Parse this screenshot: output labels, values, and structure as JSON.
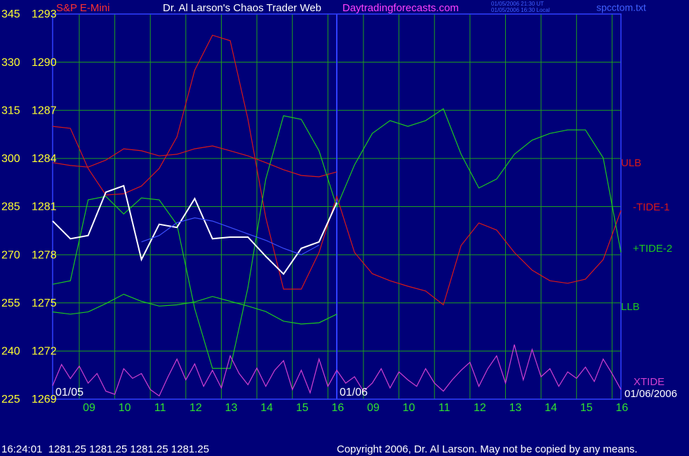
{
  "chart_data": {
    "type": "line",
    "instrument": "S&P E-Mini",
    "title": "Dr. Al Larson's Chaos Trader Web",
    "website": "Daytradingforecasts.com",
    "timestamps": [
      "01/05/2006 21:30 UT",
      "01/05/2006 16:30 Local"
    ],
    "file": "spcctom.txt",
    "status": "16:24:01  1281.25 1281.25 1281.25 1281.25",
    "copyright": "Copyright 2006, Dr. Al Larson. May not be copied by any means.",
    "date_labels": [
      {
        "value": 0,
        "label": "01/05"
      },
      {
        "value": 8,
        "label": "01/06"
      }
    ],
    "end_date": "01/06/2006",
    "xlim": [
      0,
      16
    ],
    "xticks": [
      {
        "value": 0.75,
        "label": "09"
      },
      {
        "value": 1.75,
        "label": "10"
      },
      {
        "value": 2.75,
        "label": "11"
      },
      {
        "value": 3.75,
        "label": "12"
      },
      {
        "value": 4.75,
        "label": "13"
      },
      {
        "value": 5.75,
        "label": "14"
      },
      {
        "value": 6.75,
        "label": "15"
      },
      {
        "value": 7.75,
        "label": "16"
      },
      {
        "value": 8.75,
        "label": "09"
      },
      {
        "value": 9.75,
        "label": "10"
      },
      {
        "value": 10.75,
        "label": "11"
      },
      {
        "value": 11.75,
        "label": "12"
      },
      {
        "value": 12.75,
        "label": "13"
      },
      {
        "value": 13.75,
        "label": "14"
      },
      {
        "value": 14.75,
        "label": "15"
      },
      {
        "value": 15.75,
        "label": "16"
      }
    ],
    "ylim": [
      225,
      345
    ],
    "yticks": [
      345,
      330,
      315,
      300,
      285,
      270,
      255,
      240,
      225
    ],
    "y2lim": [
      1269,
      1293
    ],
    "y2ticks": [
      1293,
      1290,
      1287,
      1284,
      1281,
      1278,
      1275,
      1272,
      1269
    ],
    "grid": true,
    "x": [
      0,
      0.5,
      1,
      1.5,
      2,
      2.5,
      3,
      3.5,
      4,
      4.5,
      5,
      5.5,
      6,
      6.5,
      7,
      7.5,
      8,
      8.5,
      9,
      9.5,
      10,
      10.5,
      11,
      11.5,
      12,
      12.5,
      13,
      13.5,
      14,
      14.5,
      15,
      15.5,
      16
    ],
    "series": [
      {
        "name": "ULB",
        "color": "#d81818",
        "values": [
          298.7,
          297.8,
          297.3,
          299.5,
          303.0,
          302.4,
          300.8,
          301.3,
          303.0,
          303.9,
          302.4,
          300.8,
          298.7,
          296.5,
          294.7,
          294.3,
          295.8,
          null,
          null,
          null,
          null,
          null,
          null,
          null,
          null,
          null,
          null,
          null,
          null,
          null,
          null,
          null,
          null
        ]
      },
      {
        "name": "-TIDE-1",
        "color": "#d81818",
        "values": [
          310.0,
          309.4,
          296.9,
          288.6,
          289.0,
          291.4,
          296.9,
          306.7,
          327.5,
          338.4,
          336.7,
          312.2,
          281.6,
          259.3,
          259.3,
          270.7,
          288.2,
          270.7,
          264.1,
          261.9,
          260.2,
          258.7,
          254.4,
          272.9,
          279.9,
          277.7,
          270.7,
          265.2,
          261.9,
          261.1,
          262.4,
          268.5,
          283.8
        ]
      },
      {
        "name": "+TIDE-2",
        "color": "#1ec81e",
        "values": [
          260.8,
          261.9,
          287.1,
          288.2,
          282.7,
          287.7,
          287.1,
          279.4,
          253.2,
          234.6,
          234.6,
          259.8,
          293.6,
          313.3,
          312.2,
          302.4,
          284.9,
          298.0,
          307.8,
          311.8,
          310.0,
          311.8,
          315.5,
          301.3,
          290.8,
          293.6,
          301.3,
          305.7,
          307.8,
          308.9,
          308.9,
          300.2,
          270.7
        ]
      },
      {
        "name": "LLB",
        "color": "#1ec81e",
        "values": [
          252.2,
          251.5,
          252.2,
          254.8,
          257.7,
          255.5,
          254.0,
          254.4,
          255.3,
          257.0,
          255.5,
          254.0,
          252.3,
          249.3,
          248.4,
          248.8,
          251.5,
          null,
          null,
          null,
          null,
          null,
          null,
          null,
          null,
          null,
          null,
          null,
          null,
          null,
          null,
          null,
          null
        ]
      },
      {
        "name": "XTIDE",
        "color": "#d040d0",
        "x": [
          0,
          0.25,
          0.5,
          0.75,
          1,
          1.25,
          1.5,
          1.75,
          2,
          2.25,
          2.5,
          2.75,
          3,
          3.25,
          3.5,
          3.75,
          4,
          4.25,
          4.5,
          4.75,
          5,
          5.25,
          5.5,
          5.75,
          6,
          6.25,
          6.5,
          6.75,
          7,
          7.25,
          7.5,
          7.75,
          8,
          8.25,
          8.5,
          8.75,
          9,
          9.25,
          9.5,
          9.75,
          10,
          10.25,
          10.5,
          10.75,
          11,
          11.25,
          11.5,
          11.75,
          12,
          12.25,
          12.5,
          12.75,
          13,
          13.25,
          13.5,
          13.75,
          14,
          14.25,
          14.5,
          14.75,
          15,
          15.25,
          15.5,
          15.75,
          16
        ],
        "values": [
          229.2,
          235.8,
          231.4,
          235.3,
          230,
          233,
          227.5,
          226.5,
          234.5,
          231.5,
          233,
          228,
          226,
          232,
          237.5,
          231,
          236,
          229,
          234,
          228.5,
          238.5,
          233,
          229.5,
          234.7,
          229,
          234,
          237,
          228,
          234,
          227,
          237.5,
          229,
          234,
          230,
          232,
          227.5,
          230,
          234.5,
          228.5,
          233.5,
          231,
          229,
          234.5,
          230,
          227.5,
          231,
          234,
          236.5,
          229,
          234.5,
          238.5,
          230,
          242,
          231,
          240.5,
          232,
          234.5,
          229,
          233.5,
          231.5,
          235,
          230.5,
          237.5,
          233,
          228
        ]
      },
      {
        "color": "#ffffff",
        "axis": "y2",
        "values": [
          1280.1,
          1279.0,
          1279.2,
          1281.9,
          1282.3,
          1277.7,
          1279.9,
          1279.7,
          1281.5,
          1279.0,
          1279.1,
          1279.1,
          1277.9,
          1276.8,
          1278.4,
          1278.8,
          1281.25,
          null,
          null,
          null,
          null,
          null,
          null,
          null,
          null,
          null,
          null,
          null,
          null,
          null,
          null,
          null,
          null
        ]
      },
      {
        "color": "#3c50ff",
        "axis": "y2",
        "values": [
          null,
          null,
          null,
          null,
          null,
          1278.8,
          1279.2,
          1280.0,
          1280.3,
          1280.1,
          1279.7,
          1279.3,
          1278.9,
          1278.4,
          1278.0,
          1278.6,
          null,
          null,
          null,
          null,
          null,
          null,
          null,
          null,
          null,
          null,
          null,
          null,
          null,
          null,
          null,
          null,
          null
        ]
      }
    ]
  }
}
